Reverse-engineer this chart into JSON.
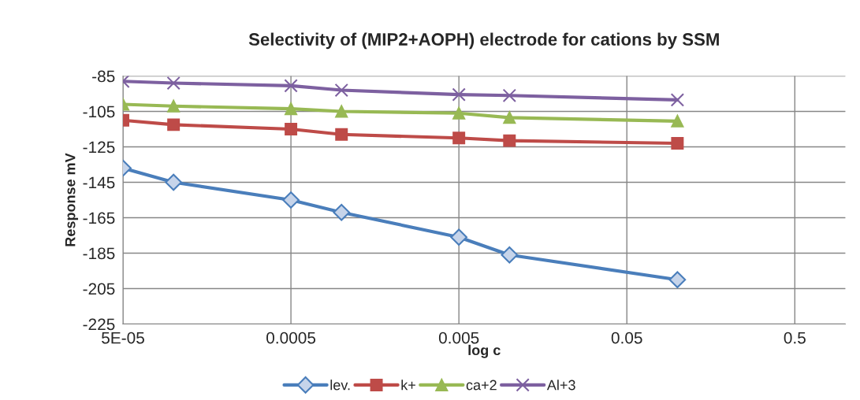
{
  "chart_data": {
    "type": "line",
    "title": "Selectivity of (MIP2+AOPH) electrode for cations by SSM",
    "xlabel": "log c",
    "ylabel": "Response mV",
    "x": [
      5e-05,
      0.0001,
      0.0005,
      0.001,
      0.005,
      0.01,
      0.1
    ],
    "series": [
      {
        "name": "lev.",
        "color": "#4a7ebb",
        "marker": "diamond",
        "values": [
          -137,
          -145,
          -155,
          -162,
          -176,
          -186,
          -200
        ]
      },
      {
        "name": "k+",
        "color": "#be4b48",
        "marker": "square",
        "values": [
          -110,
          -112.5,
          -115,
          -118,
          -120,
          -121.5,
          -123
        ]
      },
      {
        "name": "ca+2",
        "color": "#98b954",
        "marker": "triangle",
        "values": [
          -101,
          -102,
          -103.5,
          -105,
          -106,
          -108.5,
          -110.5
        ]
      },
      {
        "name": "Al+3",
        "color": "#7d60a0",
        "marker": "cross",
        "values": [
          -88,
          -89,
          -90.5,
          -93,
          -95.5,
          -96,
          -98.5
        ]
      }
    ],
    "log": "x",
    "xlim": [
      5e-05,
      1
    ],
    "xticks": [
      {
        "value": 5e-05,
        "label": "5E-05"
      },
      0.0005,
      0.005,
      0.05,
      0.5
    ],
    "ylim": [
      -225,
      -85
    ],
    "yticks": [
      -225,
      -205,
      -185,
      -165,
      -145,
      -125,
      -105,
      -85
    ],
    "grid": true,
    "legend": "bottom"
  }
}
